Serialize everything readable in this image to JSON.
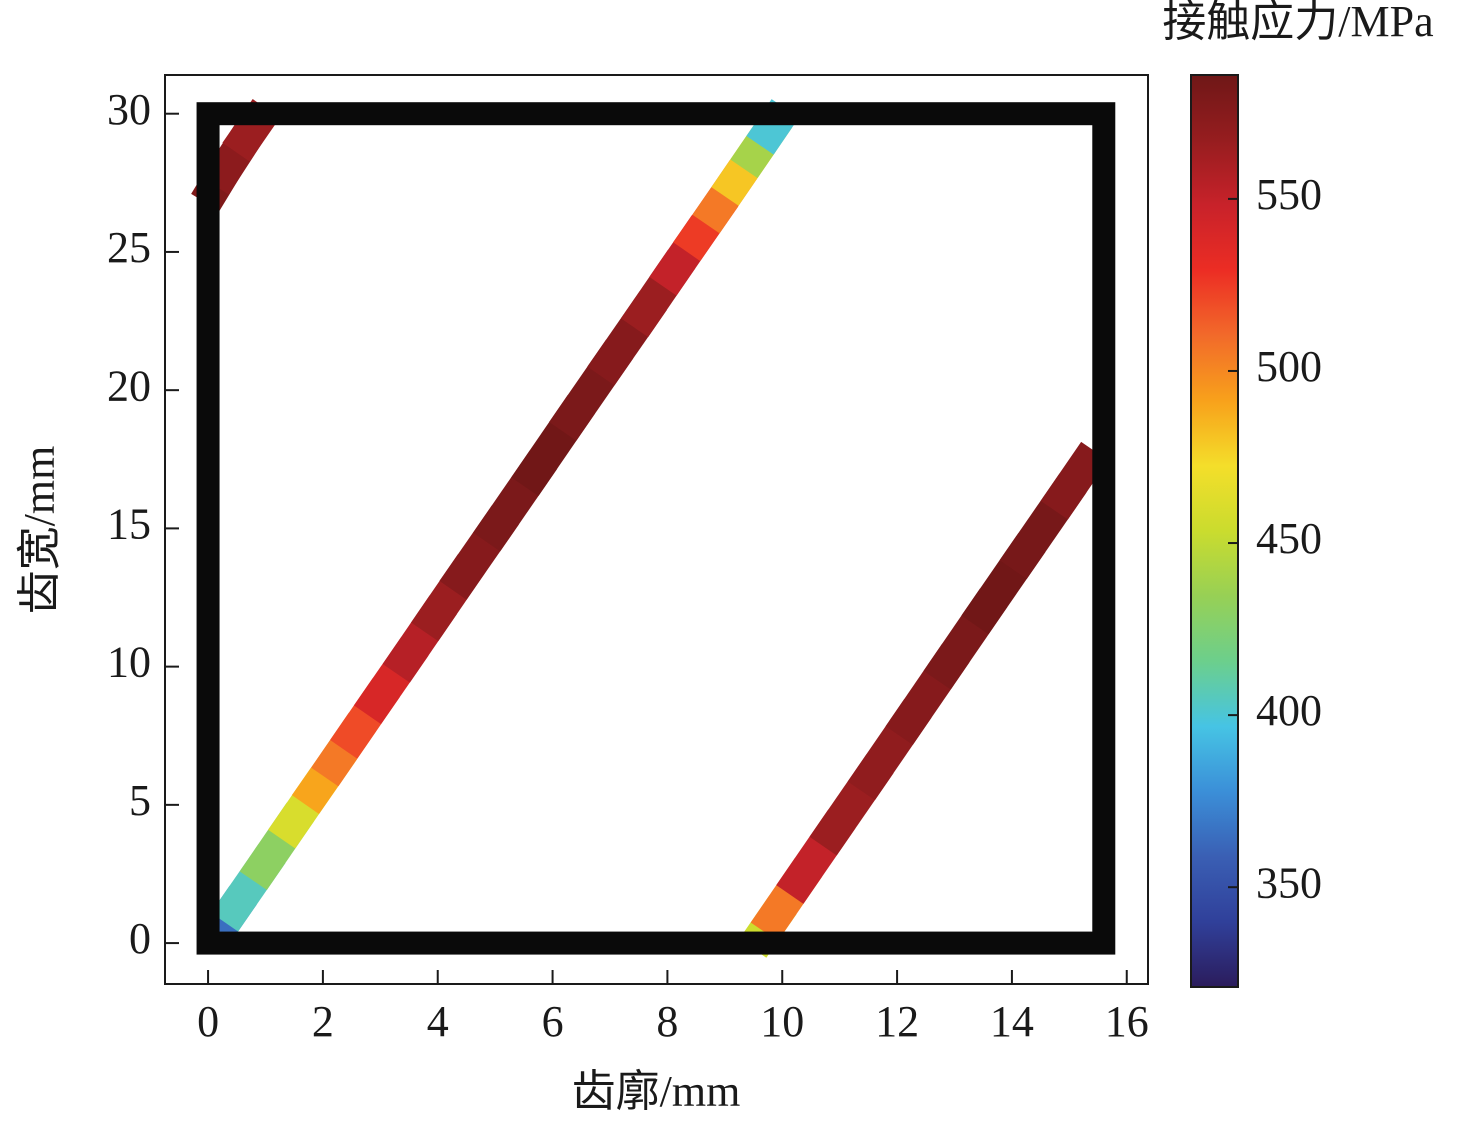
{
  "chart_data": {
    "type": "contact-pattern",
    "xlabel": "齿廓/mm",
    "ylabel": "齿宽/mm",
    "xlim": [
      -0.75,
      16.37
    ],
    "ylim": [
      -1.48,
      31.4
    ],
    "xticks": [
      0,
      2,
      4,
      6,
      8,
      10,
      12,
      14,
      16
    ],
    "yticks": [
      0,
      5,
      10,
      15,
      20,
      25,
      30
    ],
    "boundary_x": [
      0,
      15.6
    ],
    "boundary_y": [
      0,
      30
    ],
    "boundary_color": "#0a0a0a",
    "series": [
      {
        "x": [
          0.2,
          0.7,
          1.2,
          1.69,
          2.03,
          2.36,
          2.69,
          3.19,
          3.69,
          4.18,
          4.68,
          5.35,
          6.01,
          6.67,
          7.34,
          7.84,
          8.33,
          8.67,
          9.0,
          9.33,
          9.66,
          9.89
        ],
        "y": [
          0.5,
          2,
          3.5,
          5,
          6,
          7,
          8,
          9.5,
          11,
          12.5,
          14,
          16,
          18,
          20,
          22,
          23.5,
          25,
          26,
          27,
          28,
          29,
          29.7
        ],
        "values": [
          365,
          405,
          430,
          460,
          490,
          505,
          520,
          540,
          555,
          565,
          575,
          580,
          585,
          580,
          575,
          565,
          550,
          525,
          505,
          480,
          440,
          400
        ]
      },
      {
        "x": [
          9.65,
          10.05,
          10.54,
          11.21,
          11.87,
          12.53,
          13.19,
          13.85,
          14.52,
          15.28
        ],
        "y": [
          0.3,
          1.5,
          3,
          5,
          7,
          9,
          11,
          13,
          15,
          17.3
        ],
        "values": [
          455,
          505,
          550,
          565,
          570,
          575,
          580,
          585,
          582,
          575
        ]
      },
      {
        "x": [
          0.1,
          0.45,
          0.85
        ],
        "y": [
          27.3,
          28.5,
          29.7
        ],
        "values": [
          578,
          572,
          565
        ]
      }
    ],
    "colorbar_label": "接触应力/MPa",
    "clim": [
      321,
      586
    ],
    "cticks": [
      350,
      400,
      450,
      500,
      550
    ],
    "colormap": [
      "#2b1c5c",
      "#30409a",
      "#3a5fb4",
      "#3b8fd8",
      "#46c4e4",
      "#6ccf8c",
      "#97d055",
      "#cadc2e",
      "#f4de2a",
      "#f8a11b",
      "#f26a2a",
      "#ec2d24",
      "#c8222a",
      "#961d1f",
      "#6f1717"
    ]
  }
}
